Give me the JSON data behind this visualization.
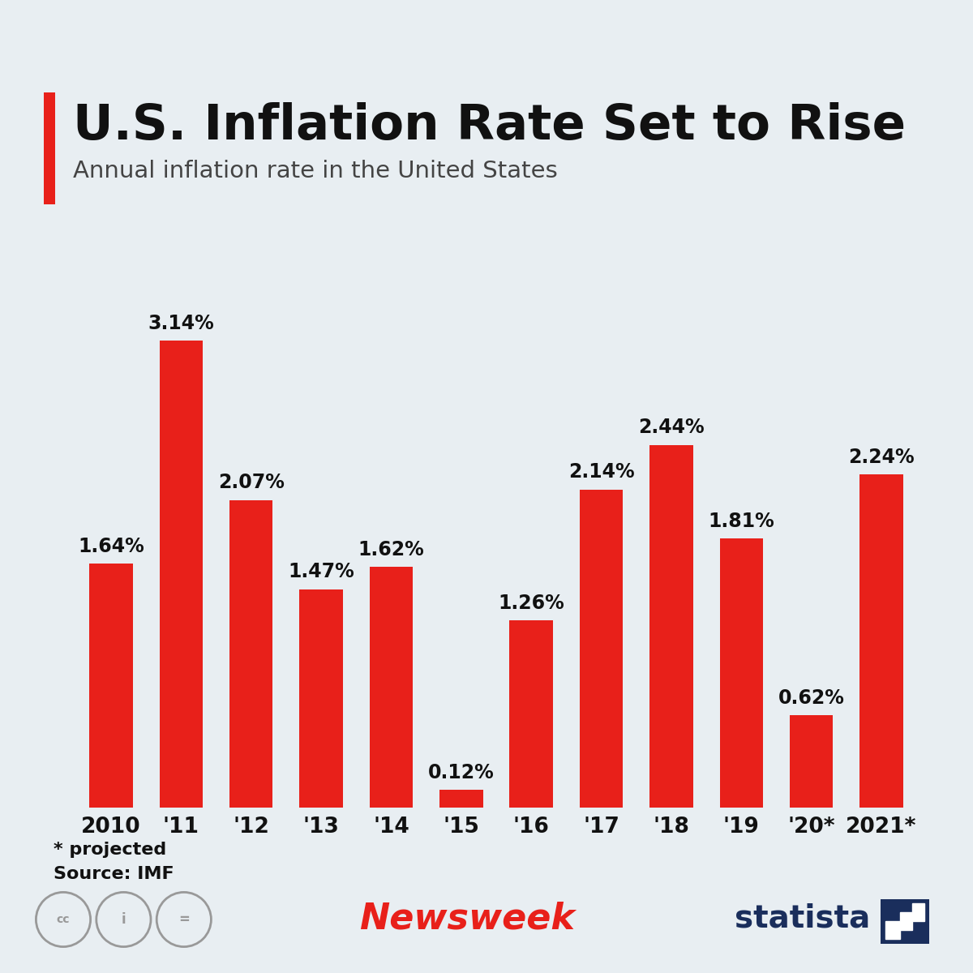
{
  "title": "U.S. Inflation Rate Set to Rise",
  "subtitle": "Annual inflation rate in the United States",
  "categories": [
    "2010",
    "'11",
    "'12",
    "'13",
    "'14",
    "'15",
    "'16",
    "'17",
    "'18",
    "'19",
    "'20*",
    "2021*"
  ],
  "values": [
    1.64,
    3.14,
    2.07,
    1.47,
    1.62,
    0.12,
    1.26,
    2.14,
    2.44,
    1.81,
    0.62,
    2.24
  ],
  "labels": [
    "1.64%",
    "3.14%",
    "2.07%",
    "1.47%",
    "1.62%",
    "0.12%",
    "1.26%",
    "2.14%",
    "2.44%",
    "1.81%",
    "0.62%",
    "2.24%"
  ],
  "bar_color": "#e8201a",
  "background_color": "#e8eef2",
  "title_color": "#111111",
  "subtitle_color": "#444444",
  "label_color": "#111111",
  "footer_note": "* projected",
  "footer_source": "Source: IMF",
  "title_fontsize": 44,
  "subtitle_fontsize": 21,
  "label_fontsize": 17,
  "tick_fontsize": 19,
  "footer_fontsize": 16,
  "ylim": [
    0,
    3.6
  ],
  "bar_width": 0.62,
  "accent_color": "#e8201a",
  "newsweek_color": "#e8201a",
  "statista_color": "#1a2e5c",
  "icon_color": "#999999"
}
